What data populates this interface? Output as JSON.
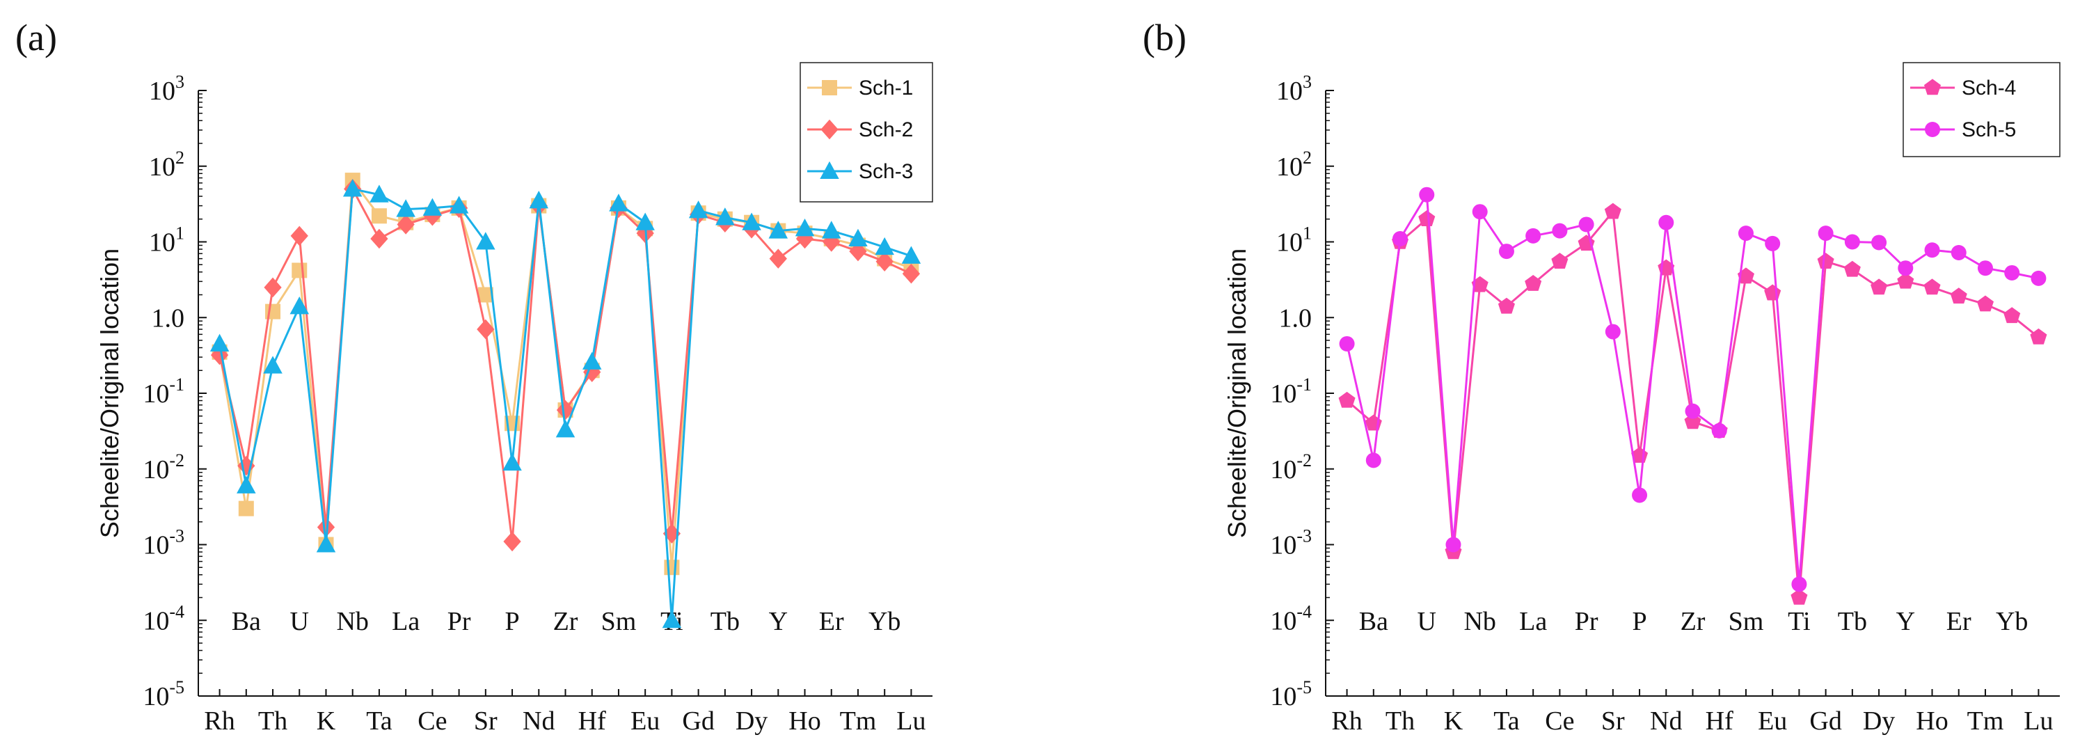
{
  "chart_data": [
    {
      "type": "line",
      "panel_label": "(a)",
      "ylabel": "Scheelite/Original location",
      "yscale": "log",
      "ylim": [
        1e-05,
        1000
      ],
      "y_ticks": [
        {
          "value": 1000,
          "base": "10",
          "exp": "3"
        },
        {
          "value": 100,
          "base": "10",
          "exp": "2"
        },
        {
          "value": 10,
          "base": "10",
          "exp": "1"
        },
        {
          "value": 1,
          "base": "1",
          "exp": "0"
        },
        {
          "value": 0.1,
          "base": "10",
          "exp": "-1"
        },
        {
          "value": 0.01,
          "base": "10",
          "exp": "-2"
        },
        {
          "value": 0.001,
          "base": "10",
          "exp": "-3"
        },
        {
          "value": 0.0001,
          "base": "10",
          "exp": "-4"
        },
        {
          "value": 1e-05,
          "base": "10",
          "exp": "-5"
        }
      ],
      "categories": [
        "Rh",
        "Ba",
        "Th",
        "U",
        "K",
        "Nb",
        "Ta",
        "La",
        "Ce",
        "Pr",
        "Sr",
        "P",
        "Nd",
        "Zr",
        "Hf",
        "Sm",
        "Eu",
        "Ti",
        "Gd",
        "Tb",
        "Dy",
        "Y",
        "Ho",
        "Er",
        "Tm",
        "Yb",
        "Lu"
      ],
      "inner_categories": [
        "Ba",
        "U",
        "Nb",
        "La",
        "Pr",
        "P",
        "Zr",
        "Sm",
        "Ti",
        "Tb",
        "Y",
        "Er",
        "Yb"
      ],
      "outer_categories": [
        "Rh",
        "Th",
        "K",
        "Ta",
        "Ce",
        "Sr",
        "Nd",
        "Hf",
        "Eu",
        "Gd",
        "Dy",
        "Ho",
        "Tm",
        "Lu"
      ],
      "legend_position": "top-right",
      "series": [
        {
          "name": "Sch-1",
          "color": "#f5c77e",
          "marker": "square",
          "values": [
            0.35,
            0.003,
            1.2,
            4.2,
            0.001,
            65,
            22,
            18,
            23,
            28,
            2,
            0.04,
            30,
            0.06,
            0.2,
            28,
            15,
            0.0005,
            24,
            20,
            18,
            14,
            13,
            11,
            9,
            6,
            4.5
          ]
        },
        {
          "name": "Sch-2",
          "color": "#ff6b6b",
          "marker": "diamond",
          "values": [
            0.32,
            0.011,
            2.5,
            12,
            0.0017,
            50,
            11,
            17,
            22,
            28,
            0.7,
            0.0011,
            30,
            0.06,
            0.19,
            28,
            13,
            0.0014,
            23,
            18,
            15,
            6,
            11,
            10,
            7.5,
            5.5,
            3.8
          ]
        },
        {
          "name": "Sch-3",
          "color": "#1ab0e8",
          "marker": "triangle",
          "values": [
            0.45,
            0.006,
            0.23,
            1.4,
            0.001,
            50,
            42,
            27,
            28,
            30,
            10,
            0.012,
            35,
            0.033,
            0.26,
            32,
            18,
            0.0001,
            26,
            21,
            18,
            14,
            15,
            14,
            11,
            8.5,
            6.5
          ]
        }
      ]
    },
    {
      "type": "line",
      "panel_label": "(b)",
      "ylabel": "Scheelite/Original location",
      "yscale": "log",
      "ylim": [
        1e-05,
        1000
      ],
      "y_ticks": [
        {
          "value": 1000,
          "base": "10",
          "exp": "3"
        },
        {
          "value": 100,
          "base": "10",
          "exp": "2"
        },
        {
          "value": 10,
          "base": "10",
          "exp": "1"
        },
        {
          "value": 1,
          "base": "1",
          "exp": "0"
        },
        {
          "value": 0.1,
          "base": "10",
          "exp": "-1"
        },
        {
          "value": 0.01,
          "base": "10",
          "exp": "-2"
        },
        {
          "value": 0.001,
          "base": "10",
          "exp": "-3"
        },
        {
          "value": 0.0001,
          "base": "10",
          "exp": "-4"
        },
        {
          "value": 1e-05,
          "base": "10",
          "exp": "-5"
        }
      ],
      "categories": [
        "Rh",
        "Ba",
        "Th",
        "U",
        "K",
        "Nb",
        "Ta",
        "La",
        "Ce",
        "Pr",
        "Sr",
        "P",
        "Nd",
        "Zr",
        "Hf",
        "Sm",
        "Eu",
        "Ti",
        "Gd",
        "Tb",
        "Dy",
        "Y",
        "Ho",
        "Er",
        "Tm",
        "Yb",
        "Lu"
      ],
      "inner_categories": [
        "Ba",
        "U",
        "Nb",
        "La",
        "Pr",
        "P",
        "Zr",
        "Sm",
        "Ti",
        "Tb",
        "Y",
        "Er",
        "Yb"
      ],
      "outer_categories": [
        "Rh",
        "Th",
        "K",
        "Ta",
        "Ce",
        "Sr",
        "Nd",
        "Hf",
        "Eu",
        "Gd",
        "Dy",
        "Ho",
        "Tm",
        "Lu"
      ],
      "legend_position": "top-right",
      "series": [
        {
          "name": "Sch-4",
          "color": "#f745a8",
          "marker": "pentagon",
          "values": [
            0.08,
            0.04,
            10,
            20,
            0.0008,
            2.7,
            1.4,
            2.8,
            5.5,
            9.5,
            25,
            0.015,
            4.5,
            0.042,
            0.032,
            3.5,
            2.1,
            0.0002,
            5.5,
            4.3,
            2.5,
            3,
            2.5,
            1.9,
            1.5,
            1.05,
            0.55
          ]
        },
        {
          "name": "Sch-5",
          "color": "#ee33ee",
          "marker": "circle",
          "values": [
            0.45,
            0.013,
            11,
            42,
            0.001,
            25,
            7.5,
            12,
            14,
            17,
            0.65,
            0.0045,
            18,
            0.058,
            0.032,
            13,
            9.5,
            0.0003,
            13,
            10,
            9.8,
            4.5,
            7.8,
            7.2,
            4.5,
            3.9,
            3.3
          ]
        }
      ]
    }
  ]
}
